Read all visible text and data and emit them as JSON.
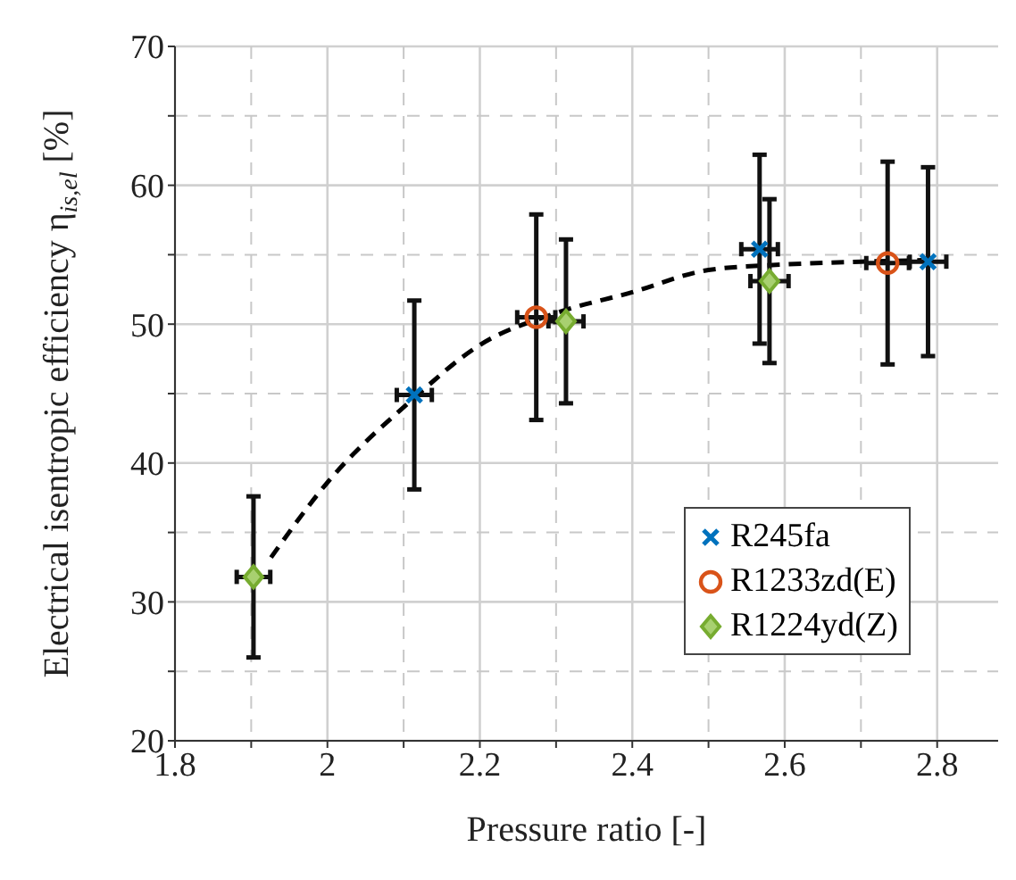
{
  "chart_data": {
    "type": "scatter",
    "xlabel": "Pressure ratio [-]",
    "ylabel": "Electrical isentropic efficiency η$_{is,el}$ [%]",
    "xlim": [
      1.8,
      2.88
    ],
    "ylim": [
      20,
      70
    ],
    "xticks": [
      1.8,
      {
        "value": 1.9,
        "label": null
      },
      2,
      {
        "value": 2.1,
        "label": null
      },
      2.2,
      {
        "value": 2.3,
        "label": null
      },
      2.4,
      {
        "value": 2.5,
        "label": null
      },
      2.6,
      {
        "value": 2.7,
        "label": null
      },
      2.8
    ],
    "yticks": [
      20,
      {
        "value": 25,
        "label": null
      },
      30,
      {
        "value": 35,
        "label": null
      },
      40,
      {
        "value": 45,
        "label": null
      },
      50,
      {
        "value": 55,
        "label": null
      },
      60,
      {
        "value": 65,
        "label": null
      },
      70
    ],
    "grid": true,
    "legend": "bottom right",
    "series": [
      {
        "type": "line",
        "color": "#000000",
        "line_style": "dashed",
        "marker": "none",
        "x": [
          1.926,
          2.0,
          2.11,
          2.2,
          2.3,
          2.4,
          2.5,
          2.6,
          2.7,
          2.78
        ],
        "values": [
          33.2,
          38.6,
          44.5,
          48.5,
          50.8,
          52.3,
          53.9,
          54.3,
          54.5,
          54.6
        ]
      },
      {
        "name": "R245fa",
        "color": "#0072bd",
        "marker": "cross",
        "x": [
          2.114,
          2.567,
          2.788
        ],
        "values": [
          44.9,
          55.4,
          54.5
        ],
        "errors": [
          6.8,
          6.8,
          6.8
        ],
        "xerrors": [
          0.023,
          0.024,
          0.024
        ]
      },
      {
        "name": "R1233zd(E)",
        "color": "#d95319",
        "marker": "circle",
        "x": [
          2.274,
          2.735
        ],
        "values": [
          50.5,
          54.4
        ],
        "errors": [
          7.4,
          7.3
        ],
        "xerrors": [
          0.025,
          0.028
        ]
      },
      {
        "name": "R1224yd(Z)",
        "color": "#77ac30",
        "marker": "diamond",
        "x": [
          1.903,
          2.313,
          2.58
        ],
        "values": [
          31.8,
          50.2,
          53.1
        ],
        "errors": [
          5.8,
          5.9,
          5.9
        ],
        "xerrors": [
          0.022,
          0.023,
          0.025
        ]
      }
    ]
  }
}
